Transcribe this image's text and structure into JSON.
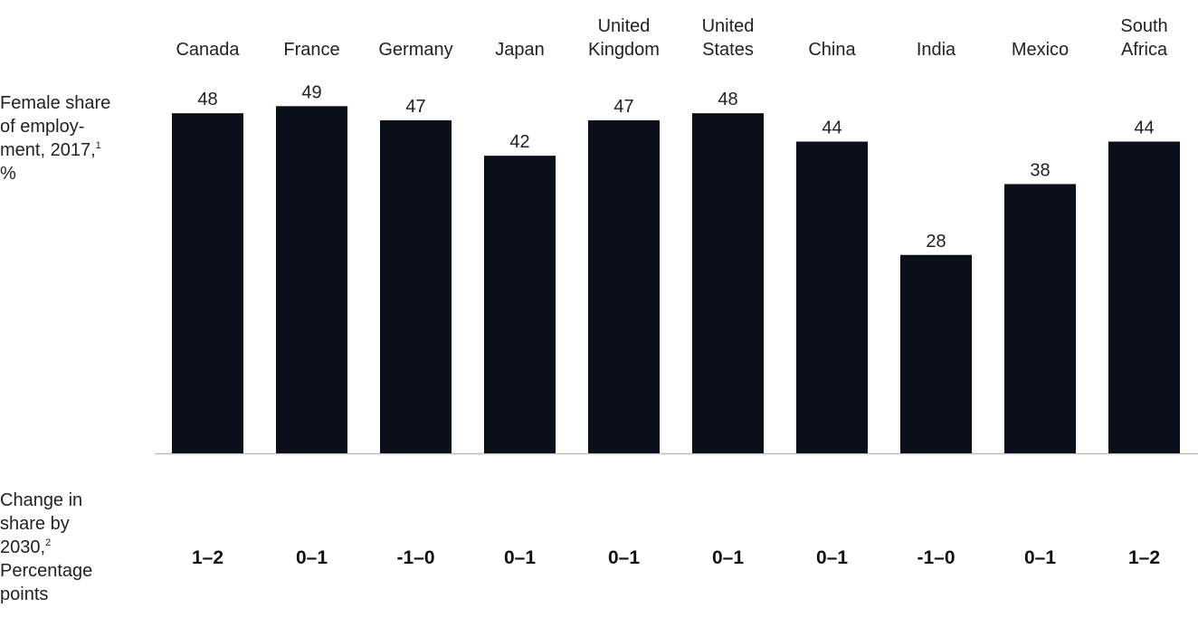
{
  "chart_data": {
    "type": "bar",
    "categories": [
      [
        "Canada"
      ],
      [
        "France"
      ],
      [
        "Germany"
      ],
      [
        "Japan"
      ],
      [
        "United",
        "Kingdom"
      ],
      [
        "United",
        "States"
      ],
      [
        "China"
      ],
      [
        "India"
      ],
      [
        "Mexico"
      ],
      [
        "South",
        "Africa"
      ]
    ],
    "series": [
      {
        "name": "Female share of employment, 2017",
        "values": [
          48,
          49,
          47,
          42,
          47,
          48,
          44,
          28,
          38,
          44
        ]
      }
    ],
    "change_by_2030": [
      "1–2",
      "0–1",
      "-1–0",
      "0–1",
      "0–1",
      "0–1",
      "0–1",
      "-1–0",
      "0–1",
      "1–2"
    ],
    "ylim": [
      0,
      54
    ],
    "grid": false,
    "bar_color": "#0b0f1a",
    "text_color": "#222222",
    "baseline_color": "#bdbdbd"
  },
  "labels": {
    "employment": {
      "text": "Female share of employ-ment, 2017,",
      "footnote": "1",
      "unit": "%"
    },
    "change": {
      "text": "Change in share by 2030,",
      "footnote": "2",
      "unit": "Percentage points"
    }
  }
}
